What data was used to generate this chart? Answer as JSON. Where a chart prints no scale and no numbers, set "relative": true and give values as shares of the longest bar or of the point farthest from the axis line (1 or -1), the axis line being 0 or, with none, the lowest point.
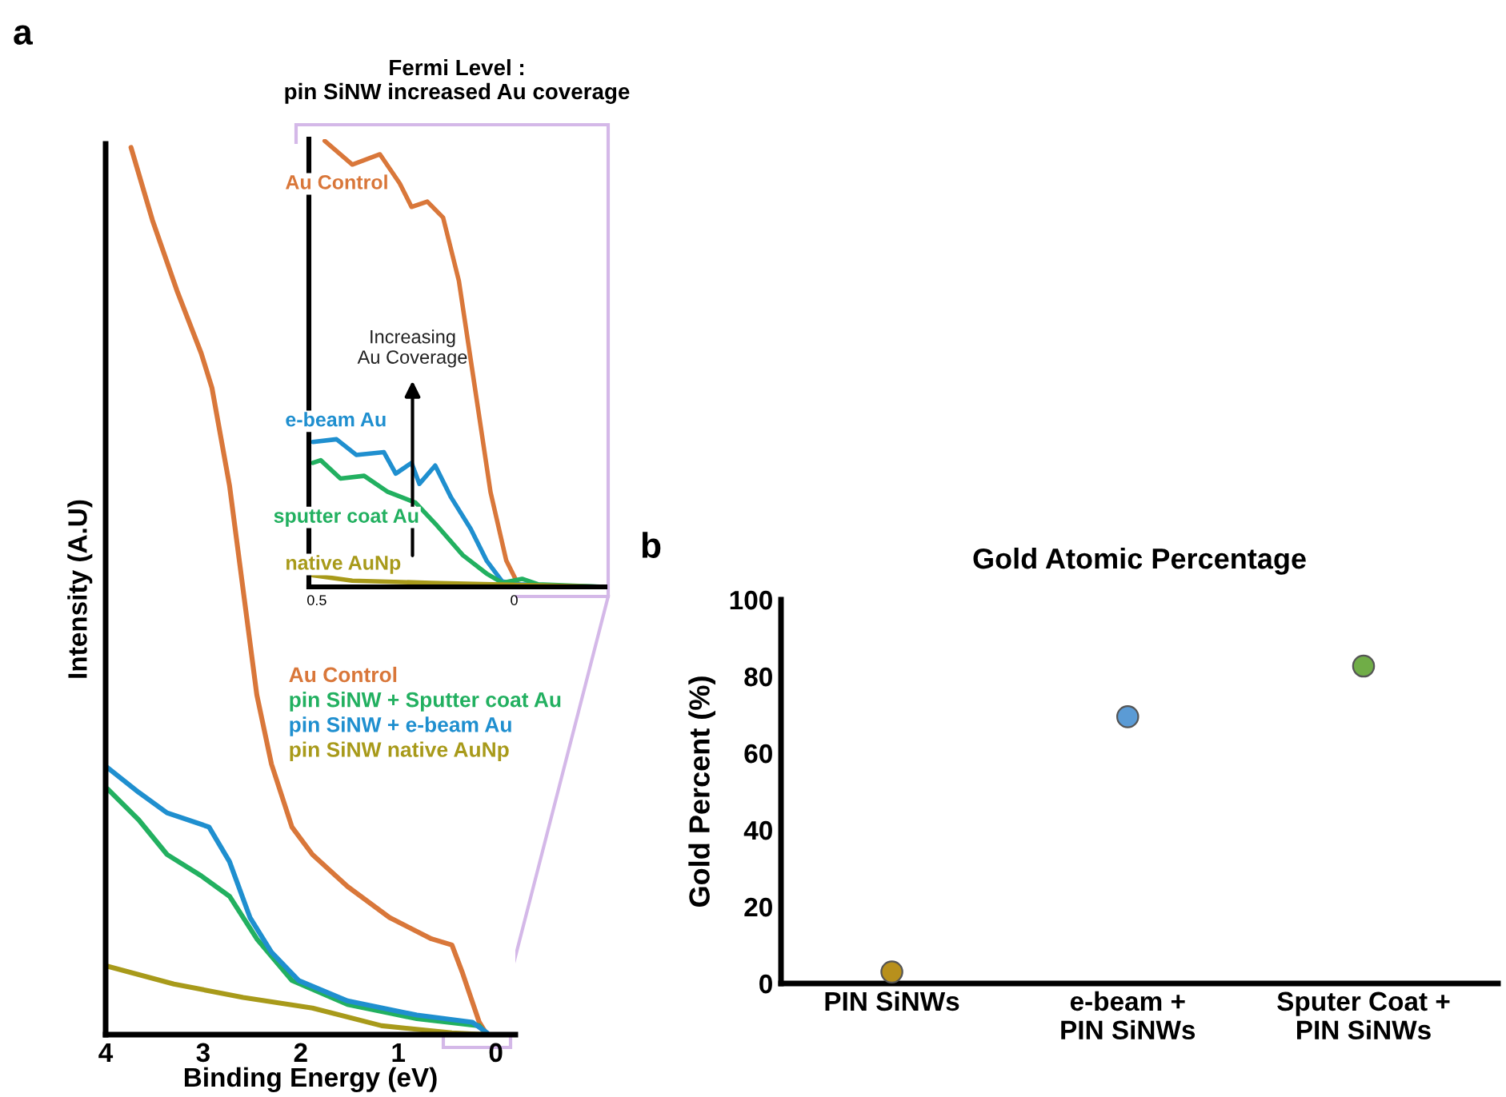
{
  "chart_data": [
    {
      "type": "line",
      "relative": true,
      "xlabel": "Binding Energy (eV)",
      "ylabel": "Intensity (A.U)",
      "xlim": [
        4,
        -0.2
      ],
      "xticks": [
        4,
        3,
        2,
        1,
        0
      ],
      "legend": "right",
      "annotations": [
        "a"
      ],
      "series": [
        {
          "name": "Au Control",
          "color": "#d9773a",
          "x": [
            3.74,
            3.52,
            3.27,
            3.02,
            2.91,
            2.73,
            2.59,
            2.45,
            2.3,
            2.09,
            1.88,
            1.52,
            1.09,
            0.66,
            0.45,
            0.34,
            0.17,
            0.09
          ],
          "values": [
            1.0,
            0.918,
            0.839,
            0.768,
            0.729,
            0.619,
            0.501,
            0.383,
            0.305,
            0.234,
            0.203,
            0.167,
            0.132,
            0.108,
            0.101,
            0.069,
            0.014,
            0
          ]
        },
        {
          "name": "pin SiNW + Sputter coat Au",
          "color": "#22b060",
          "x": [
            3.98,
            3.66,
            3.37,
            3.02,
            2.73,
            2.45,
            2.09,
            1.52,
            0.81,
            0.17,
            0.09
          ],
          "values": [
            0.277,
            0.242,
            0.203,
            0.179,
            0.156,
            0.108,
            0.061,
            0.034,
            0.018,
            0.01,
            0
          ]
        },
        {
          "name": "pin SiNW + e-beam Au",
          "color": "#1f8fcf",
          "x": [
            3.98,
            3.66,
            3.37,
            2.94,
            2.73,
            2.52,
            2.3,
            2.02,
            1.52,
            0.81,
            0.24,
            0.09
          ],
          "values": [
            0.301,
            0.273,
            0.25,
            0.234,
            0.195,
            0.132,
            0.093,
            0.061,
            0.038,
            0.022,
            0.014,
            0.002
          ]
        },
        {
          "name": "pin SiNW native AuNp",
          "color": "#a89a1a",
          "x": [
            3.98,
            3.3,
            2.59,
            1.88,
            1.17,
            0.45,
            0.09
          ],
          "values": [
            0.077,
            0.057,
            0.042,
            0.03,
            0.01,
            0.002,
            0
          ]
        }
      ]
    },
    {
      "type": "line",
      "relative": true,
      "title": "Fermi Level :\npin SiNW increased Au coverage",
      "xlim": [
        0.52,
        -0.23
      ],
      "xticks": [
        0.5,
        0
      ],
      "annotations": [
        "Increasing\nAu Coverage"
      ],
      "series": [
        {
          "name": "Au Control",
          "color": "#d9773a",
          "x": [
            0.48,
            0.41,
            0.34,
            0.29,
            0.26,
            0.22,
            0.18,
            0.14,
            0.1,
            0.06,
            0.02,
            -0.01,
            -0.03
          ],
          "values": [
            1.0,
            0.947,
            0.97,
            0.905,
            0.852,
            0.864,
            0.828,
            0.686,
            0.45,
            0.213,
            0.059,
            0.006,
            0
          ]
        },
        {
          "name": "e-beam Au",
          "color": "#1f8fcf",
          "x": [
            0.51,
            0.45,
            0.4,
            0.33,
            0.3,
            0.26,
            0.24,
            0.2,
            0.16,
            0.11,
            0.07,
            0.03,
            -0.01,
            -0.13,
            -0.23
          ],
          "values": [
            0.325,
            0.331,
            0.296,
            0.302,
            0.254,
            0.278,
            0.231,
            0.272,
            0.201,
            0.13,
            0.059,
            0.012,
            0.006,
            0.002,
            0
          ]
        },
        {
          "name": "sputter coat Au",
          "color": "#22b060",
          "x": [
            0.51,
            0.49,
            0.44,
            0.38,
            0.32,
            0.25,
            0.2,
            0.13,
            0.07,
            0.03,
            -0.02,
            -0.06,
            -0.23
          ],
          "values": [
            0.278,
            0.284,
            0.243,
            0.249,
            0.213,
            0.189,
            0.142,
            0.071,
            0.03,
            0.009,
            0.018,
            0.006,
            0
          ]
        },
        {
          "name": "native AuNp",
          "color": "#a89a1a",
          "x": [
            0.51,
            0.41,
            0.21,
            0.01,
            -0.23
          ],
          "values": [
            0.026,
            0.014,
            0.009,
            0.005,
            0
          ]
        }
      ]
    },
    {
      "type": "scatter",
      "title": "Gold Atomic Percentage",
      "ylabel": "Gold Percent (%)",
      "categories": [
        "PIN SiNWs",
        "e-beam +\nPIN SiNWs",
        "Sputer Coat +\nPIN SiNWs"
      ],
      "values": [
        3,
        69.5,
        82.7
      ],
      "colors": [
        "#b8901c",
        "#5b9bd5",
        "#70ad47"
      ],
      "marker": "circle",
      "ylim": [
        0,
        100
      ],
      "yticks": [
        0,
        20,
        40,
        60,
        80,
        100
      ],
      "annotations": [
        "b"
      ]
    }
  ]
}
